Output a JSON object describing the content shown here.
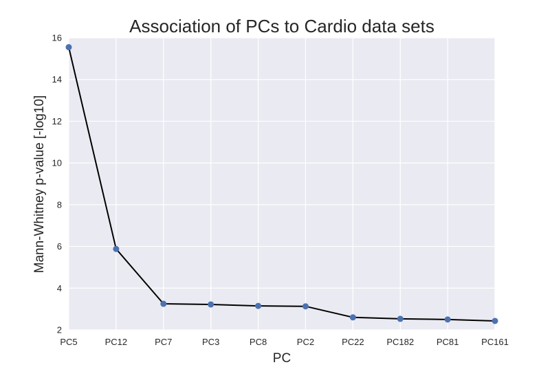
{
  "chart_data": {
    "type": "line",
    "title": "Association of PCs to Cardio data sets",
    "xlabel": "PC",
    "ylabel": "Mann-Whitney p-value [-log10]",
    "categories": [
      "PC5",
      "PC12",
      "PC7",
      "PC3",
      "PC8",
      "PC2",
      "PC22",
      "PC182",
      "PC81",
      "PC161"
    ],
    "values": [
      15.55,
      5.88,
      3.25,
      3.22,
      3.15,
      3.13,
      2.6,
      2.53,
      2.5,
      2.43
    ],
    "ylim": [
      2,
      16
    ],
    "yticks": [
      2,
      4,
      6,
      8,
      10,
      12,
      14,
      16
    ],
    "grid": true,
    "colors": {
      "plot_background": "#EAEAF2",
      "grid": "#FFFFFF",
      "line": "#000000",
      "marker": "#4C72B0"
    }
  }
}
